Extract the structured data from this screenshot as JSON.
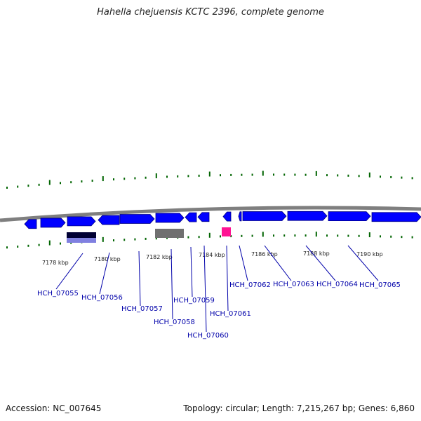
{
  "title": "Hahella chejuensis KCTC 2396, complete genome",
  "footer": {
    "accession": "Accession: NC_007645",
    "stats": "Topology: circular; Length: 7,215,267 bp; Genes: 6,860"
  },
  "colors": {
    "gene": "#0000ff",
    "gene_dark": "#000080",
    "backbone": "#808080",
    "tick": "#006400",
    "label": "#0000aa",
    "leader": "#0000aa",
    "grey_block": "#707070",
    "magenta_block": "#ff1493",
    "lavender": "#8080e0"
  },
  "scale_labels": [
    "7178 kbp",
    "7180 kbp",
    "7182 kbp",
    "7184 kbp",
    "7186 kbp",
    "7188 kbp",
    "7190 kbp"
  ],
  "gene_labels": [
    "HCH_07055",
    "HCH_07056",
    "HCH_07057",
    "HCH_07058",
    "HCH_07059",
    "HCH_07060",
    "HCH_07061",
    "HCH_07062",
    "HCH_07063",
    "HCH_07064",
    "HCH_07065"
  ]
}
